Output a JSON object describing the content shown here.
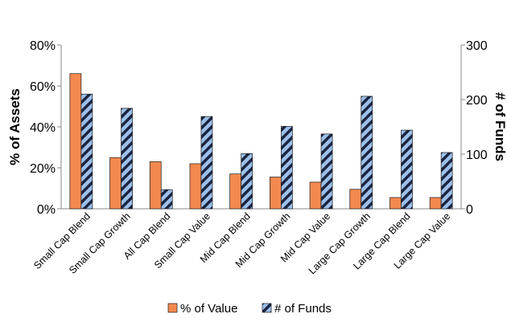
{
  "chart_data": {
    "type": "bar",
    "categories": [
      "Small Cap Blend",
      "Small Cap Growth",
      "All Cap Blend",
      "Small Cap Value",
      "Mid Cap Blend",
      "Mid Cap Growth",
      "Mid Cap Value",
      "Large Cap Growth",
      "Large Cap Blend",
      "Large Cap Value"
    ],
    "series": [
      {
        "name": "% of Value",
        "axis": "left",
        "color": "#f4894f",
        "pattern": "solid",
        "values": [
          66,
          25,
          23,
          22,
          17,
          15.5,
          13,
          9.5,
          5.5,
          5.5
        ]
      },
      {
        "name": "# of Funds",
        "axis": "right",
        "color": "#9cc0ea",
        "pattern": "diagonal-stripes-navy",
        "values": [
          210,
          184,
          35,
          169,
          101,
          151,
          137,
          206,
          144,
          103
        ]
      }
    ],
    "ylabel": "% of Assets",
    "y2label": "# of Funds",
    "ylim": [
      0,
      80
    ],
    "y2lim": [
      0,
      300
    ],
    "yticks": [
      "0%",
      "20%",
      "40%",
      "60%",
      "80%"
    ],
    "y2ticks": [
      "0",
      "100",
      "200",
      "300"
    ],
    "legend": "bottom",
    "grid": false
  }
}
